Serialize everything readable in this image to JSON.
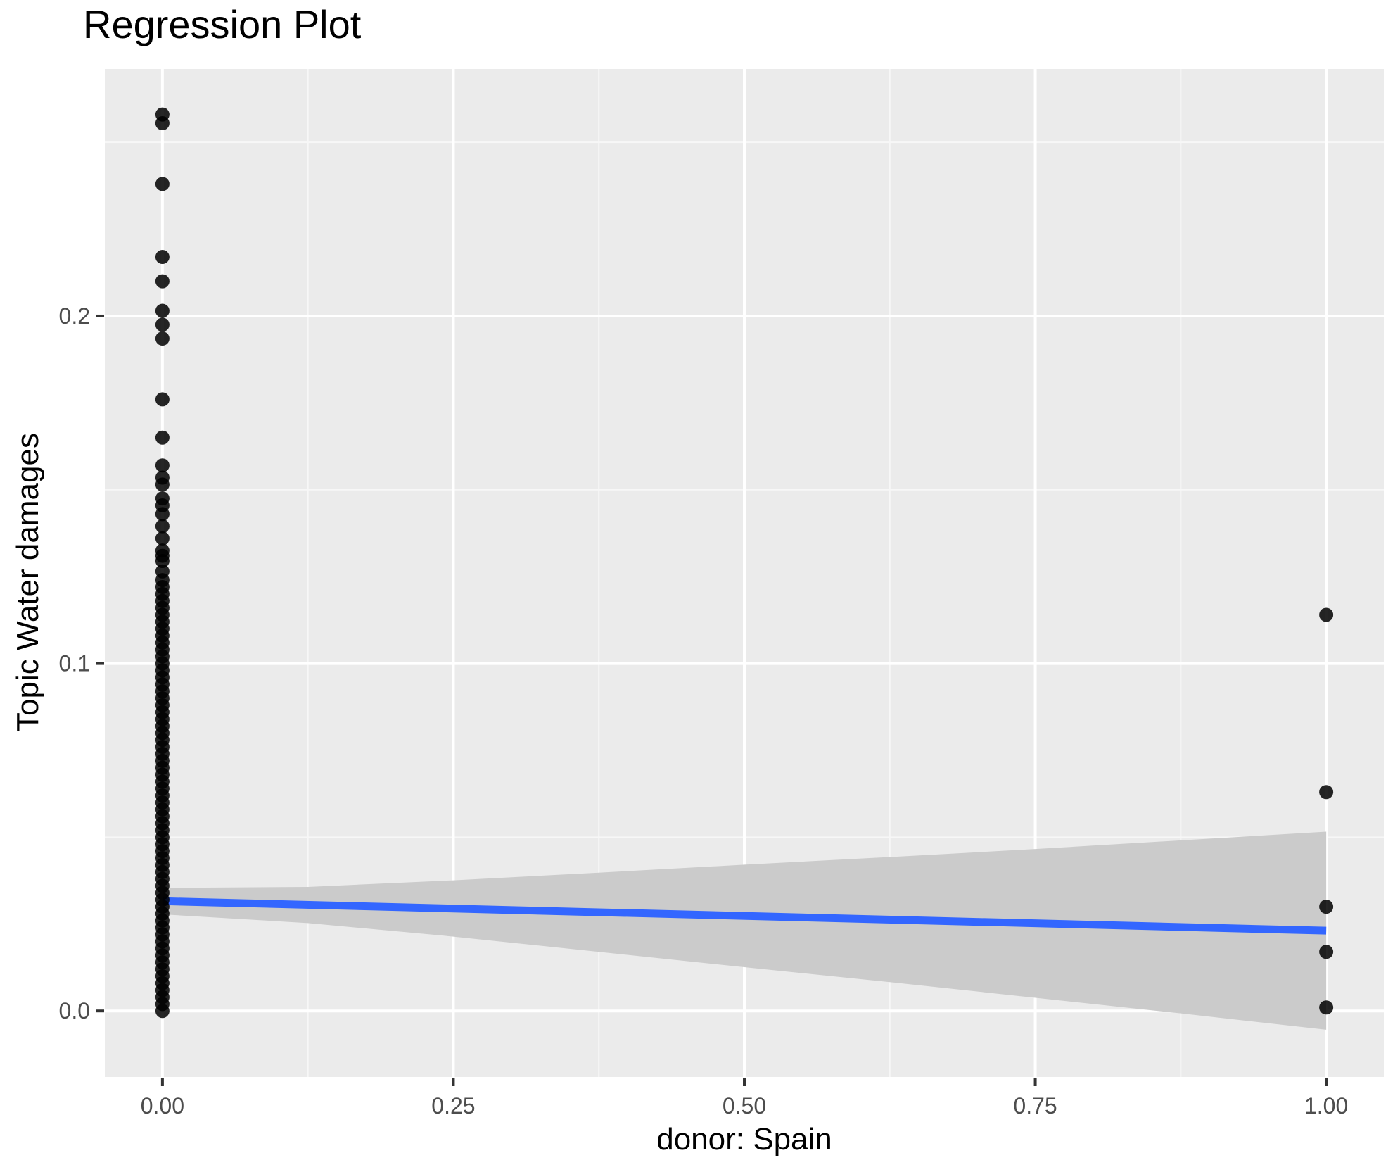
{
  "chart_data": {
    "type": "scatter",
    "title": "Regression Plot",
    "xlabel": "donor: Spain",
    "ylabel": "Topic Water damages",
    "x_axis": {
      "tick_values": [
        0,
        0.25,
        0.5,
        0.75,
        1
      ],
      "tick_labels": [
        "0.00",
        "0.25",
        "0.50",
        "0.75",
        "1.00"
      ],
      "minor_tick_values": [
        0.125,
        0.375,
        0.625,
        0.875
      ],
      "limits": [
        -0.0495,
        1.0495
      ]
    },
    "y_axis": {
      "tick_values": [
        0,
        0.1,
        0.2
      ],
      "tick_labels": [
        "0.0",
        "0.1",
        "0.2"
      ],
      "minor_tick_values": [
        0.05,
        0.15,
        0.25
      ],
      "limits": [
        -0.019,
        0.2711
      ]
    },
    "grid": true,
    "legend": false,
    "series": [
      {
        "name": "donor-0-observations",
        "x": 0,
        "y_discrete": [
          0.124,
          0.1265,
          0.1295,
          0.131,
          0.1325,
          0.136,
          0.1395,
          0.143,
          0.1455,
          0.1475,
          0.1515,
          0.1535,
          0.157,
          0.165,
          0.176,
          0.1935,
          0.1975,
          0.2015,
          0.21,
          0.217,
          0.238,
          0.2555,
          0.258
        ],
        "y_dense": [
          0.0,
          0.002,
          0.004,
          0.006,
          0.008,
          0.01,
          0.012,
          0.014,
          0.016,
          0.018,
          0.02,
          0.022,
          0.024,
          0.026,
          0.028,
          0.03,
          0.032,
          0.034,
          0.036,
          0.038,
          0.04,
          0.042,
          0.044,
          0.046,
          0.048,
          0.05,
          0.052,
          0.054,
          0.056,
          0.058,
          0.06,
          0.062,
          0.064,
          0.066,
          0.068,
          0.07,
          0.072,
          0.074,
          0.076,
          0.078,
          0.08,
          0.082,
          0.084,
          0.086,
          0.088,
          0.09,
          0.092,
          0.094,
          0.096,
          0.098,
          0.1,
          0.102,
          0.104,
          0.106,
          0.108,
          0.11,
          0.112,
          0.114,
          0.116,
          0.118,
          0.12,
          0.122
        ]
      },
      {
        "name": "donor-1-observations",
        "x": 1,
        "y": [
          0.114,
          0.063,
          0.03,
          0.017,
          0.001
        ]
      }
    ],
    "regression_line": {
      "x": [
        0,
        1
      ],
      "y": [
        0.0316,
        0.0231
      ]
    },
    "confidence_band": {
      "x": [
        0,
        0.125,
        0.25,
        0.375,
        0.5,
        0.625,
        0.75,
        0.875,
        1
      ],
      "upper": [
        0.0354,
        0.0357,
        0.0376,
        0.0398,
        0.0421,
        0.0443,
        0.0466,
        0.0491,
        0.0516
      ],
      "lower": [
        0.0278,
        0.0253,
        0.0214,
        0.017,
        0.0126,
        0.0083,
        0.0038,
        -0.0007,
        -0.0054
      ]
    },
    "colors": {
      "panel_background": "#EBEBEB",
      "grid_major": "#FFFFFF",
      "grid_minor": "#F7F7F7",
      "point": "#000000",
      "regression_line": "#3366FF",
      "confidence_band": "#CBCBCB",
      "tick_text": "#4D4D4D",
      "tick_mark": "#333333",
      "title_text": "#000000"
    }
  }
}
